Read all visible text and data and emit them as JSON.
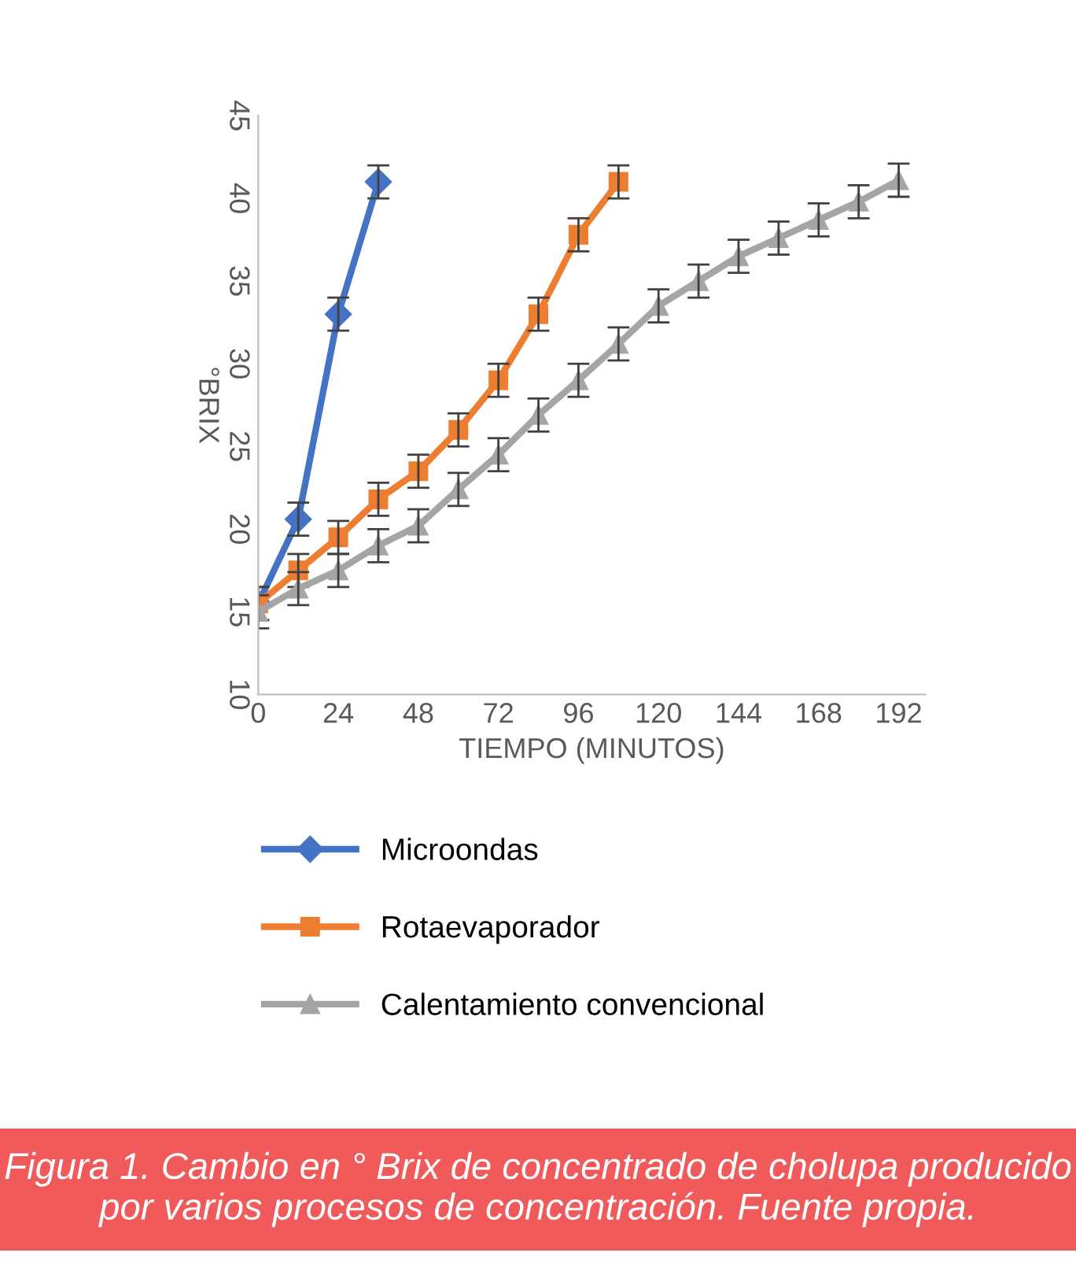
{
  "chart_data": {
    "type": "line",
    "xlabel": "TIEMPO (MINUTOS)",
    "ylabel": "°BRIX",
    "xlim": [
      0,
      200
    ],
    "xticks": [
      0,
      24,
      48,
      72,
      96,
      120,
      144,
      168,
      192
    ],
    "ylim": [
      10,
      45
    ],
    "yticks": [
      10,
      15,
      20,
      25,
      30,
      35,
      40,
      45
    ],
    "grid": false,
    "legend": "bottom",
    "line_style": "solid",
    "series": [
      {
        "name": "Microondas",
        "color": "#4472c4",
        "marker": "diamond",
        "x": [
          0,
          12,
          24,
          36
        ],
        "values": [
          15.5,
          20.6,
          33,
          41
        ],
        "errors": [
          1,
          1,
          1,
          1
        ]
      },
      {
        "name": "Rotaevaporador",
        "color": "#ed7d31",
        "marker": "square",
        "x": [
          0,
          12,
          24,
          36,
          48,
          60,
          72,
          84,
          96,
          108
        ],
        "values": [
          15.5,
          17.5,
          19.5,
          21.8,
          23.5,
          26,
          29,
          33,
          37.8,
          41
        ],
        "errors": [
          1,
          1,
          1,
          1,
          1,
          1,
          1,
          1,
          1,
          1
        ]
      },
      {
        "name": "Calentamiento convencional",
        "color": "#a5a5a5",
        "marker": "triangle",
        "x": [
          0,
          12,
          24,
          36,
          48,
          60,
          72,
          84,
          96,
          108,
          120,
          132,
          144,
          156,
          168,
          180,
          192
        ],
        "values": [
          15.0,
          16.4,
          17.5,
          19.0,
          20.2,
          22.4,
          24.5,
          26.9,
          29,
          31.2,
          33.5,
          35,
          36.5,
          37.6,
          38.7,
          39.8,
          41.1
        ],
        "errors": [
          1,
          1,
          1,
          1,
          1,
          1,
          1,
          1,
          1,
          1,
          1,
          1,
          1,
          1,
          1,
          1,
          1
        ]
      }
    ],
    "annotations": [
      "Figura 1. Cambio en ° Brix de concentrado de cholupa producido por varios procesos de concentración. Fuente propia."
    ]
  }
}
